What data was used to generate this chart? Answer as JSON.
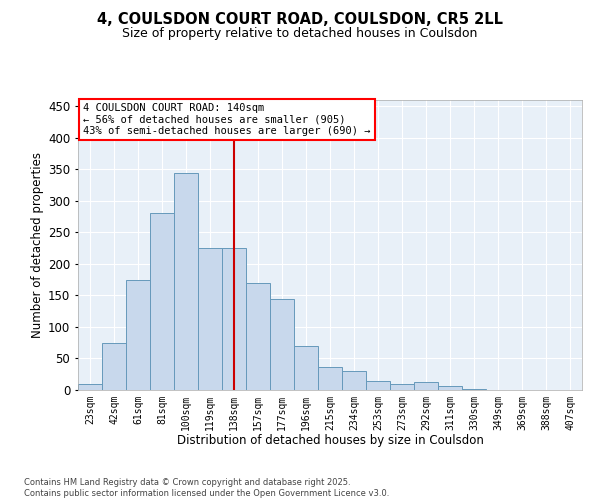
{
  "title_line1": "4, COULSDON COURT ROAD, COULSDON, CR5 2LL",
  "title_line2": "Size of property relative to detached houses in Coulsdon",
  "xlabel": "Distribution of detached houses by size in Coulsdon",
  "ylabel": "Number of detached properties",
  "bar_color": "#c8d8ec",
  "bar_edge_color": "#6699bb",
  "background_color": "#e8f0f8",
  "grid_color": "#ffffff",
  "vline_color": "#cc0000",
  "annotation_text": "4 COULSDON COURT ROAD: 140sqm\n← 56% of detached houses are smaller (905)\n43% of semi-detached houses are larger (690) →",
  "footer_text": "Contains HM Land Registry data © Crown copyright and database right 2025.\nContains public sector information licensed under the Open Government Licence v3.0.",
  "categories": [
    "23sqm",
    "42sqm",
    "61sqm",
    "81sqm",
    "100sqm",
    "119sqm",
    "138sqm",
    "157sqm",
    "177sqm",
    "196sqm",
    "215sqm",
    "234sqm",
    "253sqm",
    "273sqm",
    "292sqm",
    "311sqm",
    "330sqm",
    "349sqm",
    "369sqm",
    "388sqm",
    "407sqm"
  ],
  "values": [
    10,
    75,
    175,
    280,
    345,
    225,
    225,
    170,
    145,
    70,
    37,
    30,
    15,
    10,
    12,
    7,
    2,
    0,
    0,
    0,
    0
  ],
  "ylim": [
    0,
    460
  ],
  "yticks": [
    0,
    50,
    100,
    150,
    200,
    250,
    300,
    350,
    400,
    450
  ],
  "vline_index": 6.0
}
